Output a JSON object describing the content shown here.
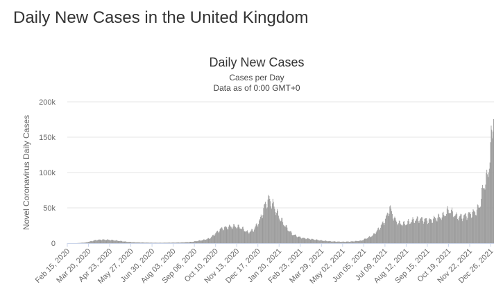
{
  "page": {
    "heading": "Daily New Cases in the United Kingdom"
  },
  "chart_data": {
    "type": "bar",
    "title": "Daily New Cases",
    "subtitle": "Cases per Day",
    "subtitle2": "Data as of 0:00 GMT+0",
    "xlabel": "",
    "ylabel": "Novel Coronavirus Daily Cases",
    "ylim": [
      0,
      200000
    ],
    "y_ticks": [
      0,
      50000,
      100000,
      150000,
      200000
    ],
    "y_tick_labels": [
      "0",
      "50k",
      "100k",
      "150k",
      "200k"
    ],
    "x_tick_labels": [
      "Feb 15, 2020",
      "Mar 20, 2020",
      "Apr 23, 2020",
      "May 27, 2020",
      "Jun 30, 2020",
      "Aug 03, 2020",
      "Sep 06, 2020",
      "Oct 10, 2020",
      "Nov 13, 2020",
      "Dec 17, 2020",
      "Jan 20, 2021",
      "Feb 23, 2021",
      "Mar 29, 2021",
      "May 02, 2021",
      "Jun 05, 2021",
      "Jul 09, 2021",
      "Aug 12, 2021",
      "Sep 15, 2021",
      "Oct 19, 2021",
      "Nov 22, 2021",
      "Dec 26, 2021"
    ],
    "x_range": [
      "2020-02-15",
      "2021-12-31"
    ],
    "grid": true,
    "legend": "none",
    "bar_color": "#9a9a9a",
    "series": [
      {
        "x": [
          "2020-02-15",
          "2020-03-01",
          "2020-03-15",
          "2020-03-25",
          "2020-04-01",
          "2020-04-10",
          "2020-04-20",
          "2020-05-01",
          "2020-05-10",
          "2020-05-20",
          "2020-06-01",
          "2020-06-15",
          "2020-07-01",
          "2020-07-15",
          "2020-08-01",
          "2020-08-15",
          "2020-09-01",
          "2020-09-10",
          "2020-09-20",
          "2020-10-01",
          "2020-10-10",
          "2020-10-20",
          "2020-11-01",
          "2020-11-10",
          "2020-11-20",
          "2020-12-01",
          "2020-12-10",
          "2020-12-20",
          "2020-12-29",
          "2021-01-04",
          "2021-01-10",
          "2021-01-20",
          "2021-02-01",
          "2021-02-10",
          "2021-02-20",
          "2021-03-01",
          "2021-03-15",
          "2021-04-01",
          "2021-04-15",
          "2021-05-01",
          "2021-05-15",
          "2021-06-01",
          "2021-06-10",
          "2021-06-20",
          "2021-07-01",
          "2021-07-10",
          "2021-07-17",
          "2021-07-25",
          "2021-08-01",
          "2021-08-10",
          "2021-08-20",
          "2021-09-01",
          "2021-09-10",
          "2021-09-20",
          "2021-10-01",
          "2021-10-10",
          "2021-10-20",
          "2021-11-01",
          "2021-11-10",
          "2021-11-20",
          "2021-12-01",
          "2021-12-08",
          "2021-12-15",
          "2021-12-20",
          "2021-12-25",
          "2021-12-29",
          "2021-12-31"
        ],
        "y": [
          0,
          50,
          1000,
          3000,
          4500,
          5000,
          4800,
          4000,
          3000,
          2000,
          1300,
          1000,
          650,
          600,
          850,
          1100,
          1800,
          3000,
          4500,
          7000,
          14000,
          21000,
          23000,
          24000,
          22000,
          15000,
          19000,
          32000,
          55000,
          62000,
          55000,
          37000,
          22000,
          13000,
          9000,
          7000,
          5500,
          3500,
          2500,
          2000,
          2300,
          3500,
          7000,
          11000,
          22000,
          33000,
          50000,
          33000,
          28000,
          27000,
          31000,
          34000,
          33000,
          32000,
          36000,
          38000,
          47000,
          38000,
          37000,
          40000,
          44000,
          51000,
          82000,
          90000,
          120000,
          165000,
          185000
        ]
      }
    ]
  }
}
